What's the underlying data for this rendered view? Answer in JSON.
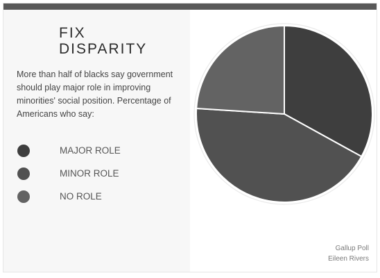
{
  "title_lines": [
    "FIX",
    "DISPARITY"
  ],
  "description": "More than half of blacks say government should play major role in improving minorities' social position. Percentage of Americans who say:",
  "source": {
    "line1": "Gallup Poll",
    "line2": "Eileen Rivers"
  },
  "colors": {
    "topbar": "#595959",
    "panel": "#f7f7f7",
    "slice_stroke": "#ffffff"
  },
  "chart_data": {
    "type": "pie",
    "categories": [
      "MAJOR ROLE",
      "MINOR ROLE",
      "NO ROLE"
    ],
    "values": [
      33,
      43,
      24
    ],
    "colors": [
      "#3e3e3e",
      "#515151",
      "#636363"
    ],
    "legend_position": "left",
    "start_angle_deg": 0,
    "direction": "clockwise"
  }
}
